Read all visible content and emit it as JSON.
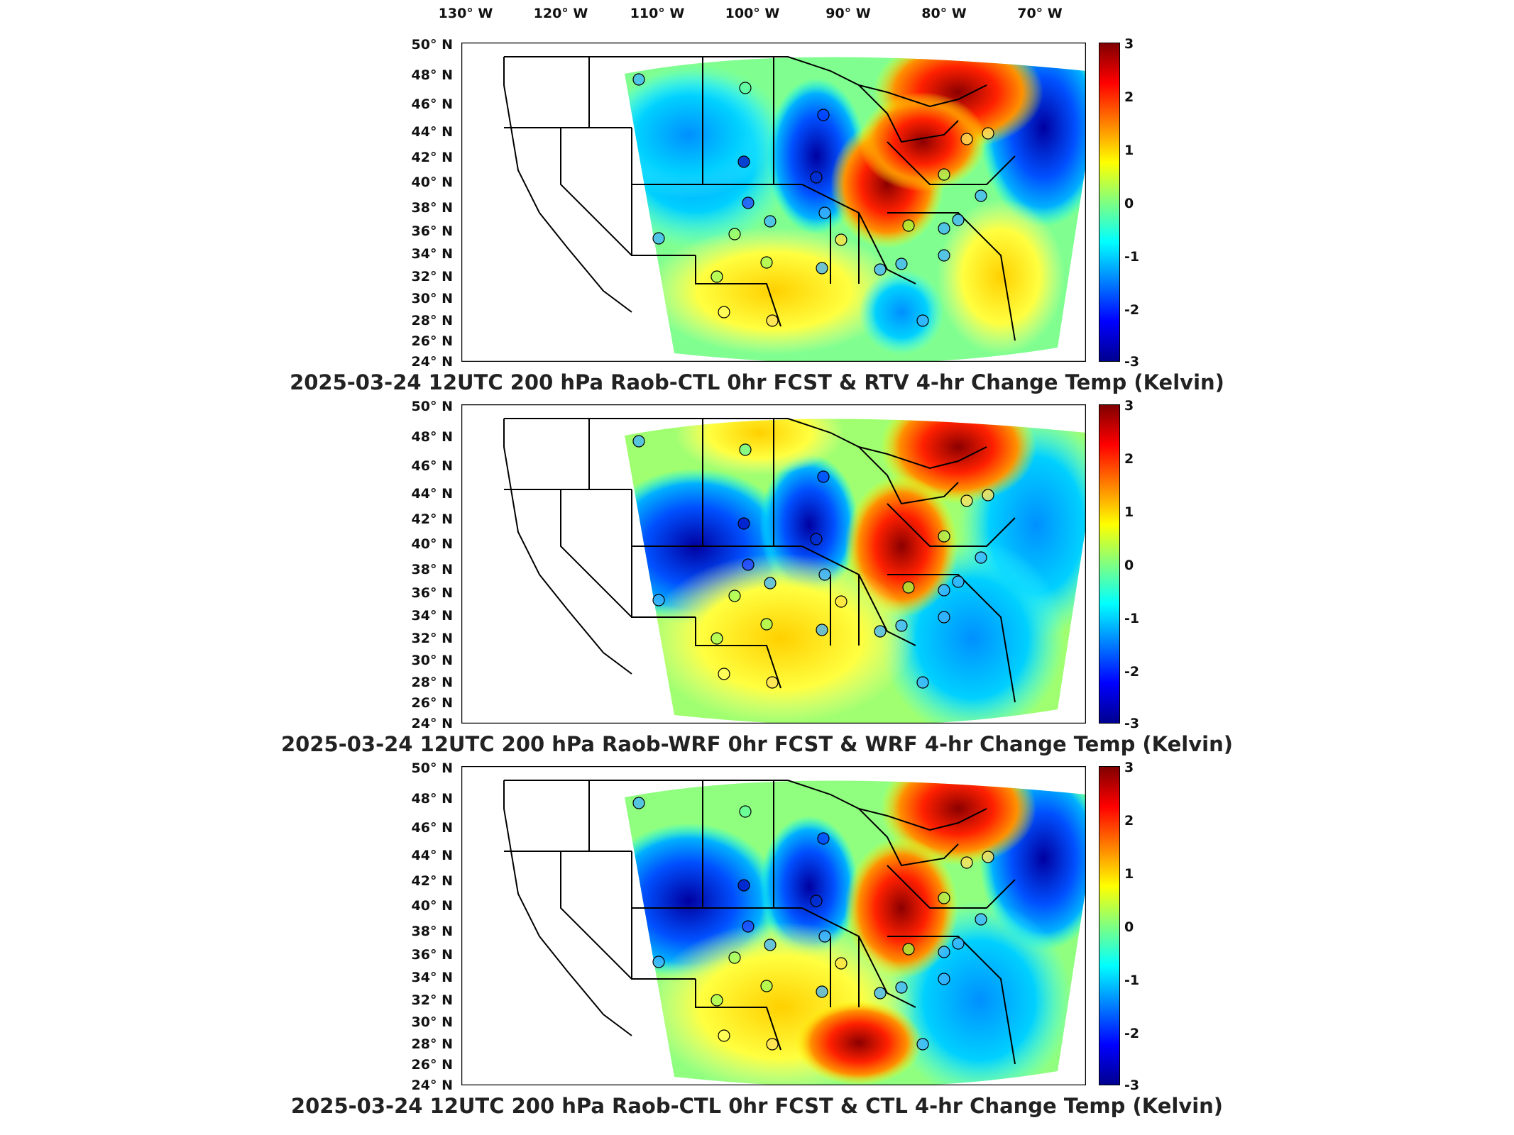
{
  "lon_labels": [
    "130° W",
    "120° W",
    "110° W",
    "100° W",
    "90° W",
    "80° W",
    "70° W"
  ],
  "lat_labels": [
    "50° N",
    "48° N",
    "46° N",
    "44° N",
    "42° N",
    "40° N",
    "38° N",
    "36° N",
    "34° N",
    "32° N",
    "30° N",
    "28° N",
    "26° N",
    "24° N"
  ],
  "colorbar": {
    "ticks": [
      "3",
      "2",
      "1",
      "0",
      "-1",
      "-2",
      "-3"
    ],
    "colormap": "jet",
    "range": [
      -3,
      3
    ]
  },
  "panels": [
    {
      "title": "2025-03-24 12UTC 200 hPa Raob-CTL 0hr FCST & RTV 4-hr Change Temp (Kelvin)"
    },
    {
      "title": "2025-03-24 12UTC 200 hPa Raob-WRF 0hr FCST & WRF 4-hr Change Temp (Kelvin)"
    },
    {
      "title": "2025-03-24 12UTC 200 hPa Raob-CTL 0hr FCST & CTL 4-hr Change Temp (Kelvin)"
    }
  ],
  "colors": {
    "warm": "#c00000",
    "cool": "#0000c0",
    "neutral": "#80ff80"
  }
}
